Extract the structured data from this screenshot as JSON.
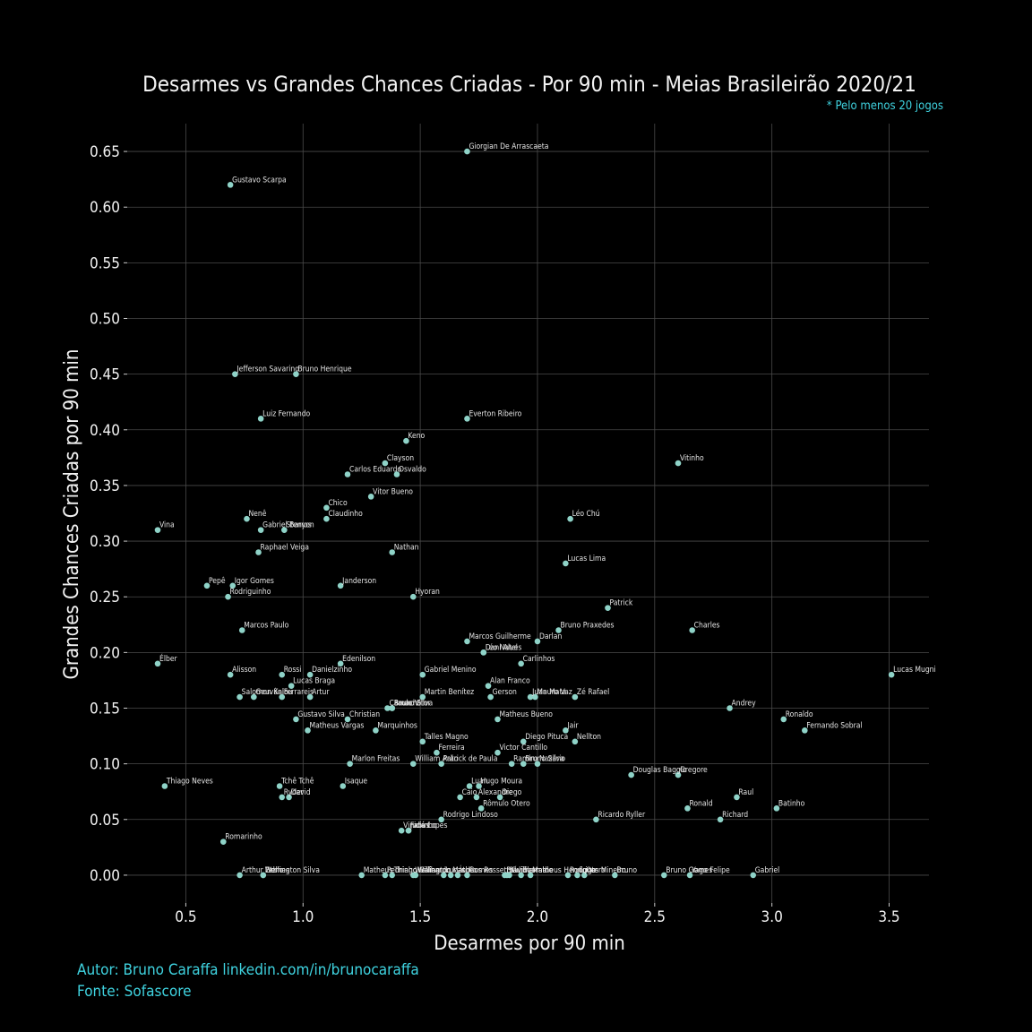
{
  "chart_data": {
    "type": "scatter",
    "title": "Desarmes vs Grandes Chances Criadas - Por 90 min - Meias Brasileirão 2020/21",
    "subtitle": "* Pelo menos 20 jogos",
    "xlabel": "Desarmes por 90 min",
    "ylabel": "Grandes Chances Criadas por 90 min",
    "xlim": [
      0.25,
      3.67
    ],
    "ylim": [
      -0.025,
      0.675
    ],
    "xticks": [
      0.5,
      1.0,
      1.5,
      2.0,
      2.5,
      3.0,
      3.5
    ],
    "xtick_labels": [
      "0.5",
      "1.0",
      "1.5",
      "2.0",
      "2.5",
      "3.0",
      "3.5"
    ],
    "yticks": [
      0.0,
      0.05,
      0.1,
      0.15,
      0.2,
      0.25,
      0.3,
      0.35,
      0.4,
      0.45,
      0.5,
      0.55,
      0.6,
      0.65
    ],
    "ytick_labels": [
      "0.00",
      "0.05",
      "0.10",
      "0.15",
      "0.20",
      "0.25",
      "0.30",
      "0.35",
      "0.40",
      "0.45",
      "0.50",
      "0.55",
      "0.60",
      "0.65"
    ],
    "grid": true,
    "point_color": "#8fd3c8",
    "points": [
      {
        "name": "Giorgian De Arrascaeta",
        "x": 1.7,
        "y": 0.65
      },
      {
        "name": "Gustavo Scarpa",
        "x": 0.69,
        "y": 0.62
      },
      {
        "name": "Jefferson Savarino",
        "x": 0.71,
        "y": 0.45
      },
      {
        "name": "Bruno Henrique",
        "x": 0.97,
        "y": 0.45
      },
      {
        "name": "Luiz Fernando",
        "x": 0.82,
        "y": 0.41
      },
      {
        "name": "Everton Ribeiro",
        "x": 1.7,
        "y": 0.41
      },
      {
        "name": "Keno",
        "x": 1.44,
        "y": 0.39
      },
      {
        "name": "Clayson",
        "x": 1.35,
        "y": 0.37
      },
      {
        "name": "Carlos Eduardo",
        "x": 1.19,
        "y": 0.36
      },
      {
        "name": "Osvaldo",
        "x": 1.4,
        "y": 0.36
      },
      {
        "name": "Vitinho",
        "x": 2.6,
        "y": 0.37
      },
      {
        "name": "Vitor Bueno",
        "x": 1.29,
        "y": 0.34
      },
      {
        "name": "Chico",
        "x": 1.1,
        "y": 0.33
      },
      {
        "name": "Claudinho",
        "x": 1.1,
        "y": 0.32
      },
      {
        "name": "Nenê",
        "x": 0.76,
        "y": 0.32
      },
      {
        "name": "Léo Chú",
        "x": 2.14,
        "y": 0.32
      },
      {
        "name": "Vina",
        "x": 0.38,
        "y": 0.31
      },
      {
        "name": "Gabriel Barros",
        "x": 0.82,
        "y": 0.31
      },
      {
        "name": "Stenyon",
        "x": 0.92,
        "y": 0.31
      },
      {
        "name": "Raphael Veiga",
        "x": 0.81,
        "y": 0.29
      },
      {
        "name": "Nathan",
        "x": 1.38,
        "y": 0.29
      },
      {
        "name": "Lucas Lima",
        "x": 2.12,
        "y": 0.28
      },
      {
        "name": "Pepê",
        "x": 0.59,
        "y": 0.26
      },
      {
        "name": "Igor Gomes",
        "x": 0.7,
        "y": 0.26
      },
      {
        "name": "Rodriguinho",
        "x": 0.68,
        "y": 0.25
      },
      {
        "name": "Janderson",
        "x": 1.16,
        "y": 0.26
      },
      {
        "name": "Hyoran",
        "x": 1.47,
        "y": 0.25
      },
      {
        "name": "Patrick",
        "x": 2.3,
        "y": 0.24
      },
      {
        "name": "Marcos Paulo",
        "x": 0.74,
        "y": 0.22
      },
      {
        "name": "Bruno Praxedes",
        "x": 2.09,
        "y": 0.22
      },
      {
        "name": "Charles",
        "x": 2.66,
        "y": 0.22
      },
      {
        "name": "Marcos Guilherme",
        "x": 1.7,
        "y": 0.21
      },
      {
        "name": "Darlan",
        "x": 2.0,
        "y": 0.21
      },
      {
        "name": "Dani Alves",
        "x": 1.77,
        "y": 0.2
      },
      {
        "name": "Léo Natel",
        "x": 1.77,
        "y": 0.2
      },
      {
        "name": "Élber",
        "x": 0.38,
        "y": 0.19
      },
      {
        "name": "Edenilson",
        "x": 1.16,
        "y": 0.19
      },
      {
        "name": "Carlinhos",
        "x": 1.93,
        "y": 0.19
      },
      {
        "name": "Alisson",
        "x": 0.69,
        "y": 0.18
      },
      {
        "name": "Rossi",
        "x": 0.91,
        "y": 0.18
      },
      {
        "name": "Danielzinho",
        "x": 1.03,
        "y": 0.18
      },
      {
        "name": "Gabriel Menino",
        "x": 1.51,
        "y": 0.18
      },
      {
        "name": "Lucas Mugni",
        "x": 3.51,
        "y": 0.18
      },
      {
        "name": "Lucas Braga",
        "x": 0.95,
        "y": 0.17
      },
      {
        "name": "Alan Franco",
        "x": 1.79,
        "y": 0.17
      },
      {
        "name": "Salomon Kalou",
        "x": 0.73,
        "y": 0.16
      },
      {
        "name": "Geuvânio",
        "x": 0.79,
        "y": 0.16
      },
      {
        "name": "Ferrareis",
        "x": 0.91,
        "y": 0.16
      },
      {
        "name": "Artur",
        "x": 1.03,
        "y": 0.16
      },
      {
        "name": "Martin Benítez",
        "x": 1.51,
        "y": 0.16
      },
      {
        "name": "Gerson",
        "x": 1.8,
        "y": 0.16
      },
      {
        "name": "Juan Mata",
        "x": 1.97,
        "y": 0.16
      },
      {
        "name": "Mauro Vaz",
        "x": 1.99,
        "y": 0.16
      },
      {
        "name": "Zé Rafael",
        "x": 2.16,
        "y": 0.16
      },
      {
        "name": "Camacho",
        "x": 1.36,
        "y": 0.15
      },
      {
        "name": "Bruno Silva",
        "x": 1.38,
        "y": 0.15
      },
      {
        "name": "Paulo Vitor",
        "x": 1.38,
        "y": 0.15
      },
      {
        "name": "Andrey",
        "x": 2.82,
        "y": 0.15
      },
      {
        "name": "Gustavo Silva",
        "x": 0.97,
        "y": 0.14
      },
      {
        "name": "Christian",
        "x": 1.19,
        "y": 0.14
      },
      {
        "name": "Matheus Bueno",
        "x": 1.83,
        "y": 0.14
      },
      {
        "name": "Ronaldo",
        "x": 3.05,
        "y": 0.14
      },
      {
        "name": "Matheus Vargas",
        "x": 1.02,
        "y": 0.13
      },
      {
        "name": "Marquinhos",
        "x": 1.31,
        "y": 0.13
      },
      {
        "name": "Jair",
        "x": 2.12,
        "y": 0.13
      },
      {
        "name": "Fernando Sobral",
        "x": 3.14,
        "y": 0.13
      },
      {
        "name": "Talles Magno",
        "x": 1.51,
        "y": 0.12
      },
      {
        "name": "Diego Pituca",
        "x": 1.94,
        "y": 0.12
      },
      {
        "name": "Nellton",
        "x": 2.16,
        "y": 0.12
      },
      {
        "name": "Ferreira",
        "x": 1.57,
        "y": 0.11
      },
      {
        "name": "Victor Cantillo",
        "x": 1.83,
        "y": 0.11
      },
      {
        "name": "Marlon Freitas",
        "x": 1.2,
        "y": 0.1
      },
      {
        "name": "William Arão",
        "x": 1.47,
        "y": 0.1
      },
      {
        "name": "Patrick de Paula",
        "x": 1.59,
        "y": 0.1
      },
      {
        "name": "Ramiro",
        "x": 1.89,
        "y": 0.1
      },
      {
        "name": "Bruno Silva",
        "x": 1.94,
        "y": 0.1
      },
      {
        "name": "Nazário",
        "x": 2.0,
        "y": 0.1
      },
      {
        "name": "Douglas Baggio",
        "x": 2.4,
        "y": 0.09
      },
      {
        "name": "Gregore",
        "x": 2.6,
        "y": 0.09
      },
      {
        "name": "Thiago Neves",
        "x": 0.41,
        "y": 0.08
      },
      {
        "name": "Tchê Tchê",
        "x": 0.9,
        "y": 0.08
      },
      {
        "name": "Isaque",
        "x": 1.17,
        "y": 0.08
      },
      {
        "name": "Luan",
        "x": 1.71,
        "y": 0.08
      },
      {
        "name": "Hugo Moura",
        "x": 1.75,
        "y": 0.08
      },
      {
        "name": "Ryder",
        "x": 0.91,
        "y": 0.07
      },
      {
        "name": "David",
        "x": 0.94,
        "y": 0.07
      },
      {
        "name": "Caio",
        "x": 1.67,
        "y": 0.07
      },
      {
        "name": "Alexandre",
        "x": 1.74,
        "y": 0.07
      },
      {
        "name": "Diego",
        "x": 1.84,
        "y": 0.07
      },
      {
        "name": "Raul",
        "x": 2.85,
        "y": 0.07
      },
      {
        "name": "Rômulo Otero",
        "x": 1.76,
        "y": 0.06
      },
      {
        "name": "Ronald",
        "x": 2.64,
        "y": 0.06
      },
      {
        "name": "Batinho",
        "x": 3.02,
        "y": 0.06
      },
      {
        "name": "Rodrigo Lindoso",
        "x": 1.59,
        "y": 0.05
      },
      {
        "name": "Ricardo Ryller",
        "x": 2.25,
        "y": 0.05
      },
      {
        "name": "Richard",
        "x": 2.78,
        "y": 0.05
      },
      {
        "name": "Vinicius",
        "x": 1.42,
        "y": 0.04
      },
      {
        "name": "Fabinho",
        "x": 1.45,
        "y": 0.04
      },
      {
        "name": "Judá Lopes",
        "x": 1.45,
        "y": 0.04
      },
      {
        "name": "Romarinho",
        "x": 0.66,
        "y": 0.03
      },
      {
        "name": "Arthur Gomes",
        "x": 0.73,
        "y": 0.0
      },
      {
        "name": "Pablo",
        "x": 0.83,
        "y": 0.0
      },
      {
        "name": "Wellington Silva",
        "x": 0.83,
        "y": 0.0
      },
      {
        "name": "Matheus",
        "x": 1.25,
        "y": 0.0
      },
      {
        "name": "Pedrinho",
        "x": 1.35,
        "y": 0.0
      },
      {
        "name": "Thiago Galhardo",
        "x": 1.38,
        "y": 0.0
      },
      {
        "name": "Wellington",
        "x": 1.47,
        "y": 0.0
      },
      {
        "name": "Willian",
        "x": 1.48,
        "y": 0.0
      },
      {
        "name": "Lucas",
        "x": 1.6,
        "y": 0.0
      },
      {
        "name": "Matheus Rossetto",
        "x": 1.63,
        "y": 0.0
      },
      {
        "name": "Índio",
        "x": 1.66,
        "y": 0.0
      },
      {
        "name": "Gomes",
        "x": 1.7,
        "y": 0.0
      },
      {
        "name": "Paulinho",
        "x": 1.86,
        "y": 0.0
      },
      {
        "name": "Sávio",
        "x": 1.87,
        "y": 0.0
      },
      {
        "name": "Guilherme",
        "x": 1.88,
        "y": 0.0
      },
      {
        "name": "Everaldo",
        "x": 1.93,
        "y": 0.0
      },
      {
        "name": "Matheus Henrique",
        "x": 1.97,
        "y": 0.0
      },
      {
        "name": "Rodrigo",
        "x": 2.13,
        "y": 0.0
      },
      {
        "name": "Lucas Mineiro",
        "x": 2.17,
        "y": 0.0
      },
      {
        "name": "Otero",
        "x": 2.2,
        "y": 0.0
      },
      {
        "name": "Bruno",
        "x": 2.33,
        "y": 0.0
      },
      {
        "name": "Bruno Gomes",
        "x": 2.54,
        "y": 0.0
      },
      {
        "name": "Yago Felipe",
        "x": 2.65,
        "y": 0.0
      },
      {
        "name": "Gabriel",
        "x": 2.92,
        "y": 0.0
      }
    ]
  },
  "footer": {
    "author": "Autor: Bruno Caraffa linkedin.com/in/brunocaraffa",
    "source": "Fonte: Sofascore"
  }
}
